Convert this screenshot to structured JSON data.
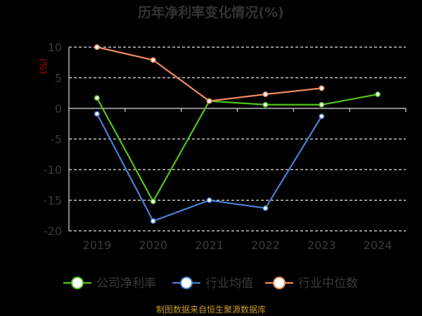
{
  "chart_data": {
    "type": "line",
    "title": "历年净利率变化情况(%)",
    "unit_label": "(%)",
    "categories": [
      "2019",
      "2020",
      "2021",
      "2022",
      "2023",
      "2024"
    ],
    "ylim": [
      -20,
      10
    ],
    "yticks": [
      "10",
      "5",
      "0",
      "-5",
      "-10",
      "-15",
      "-20"
    ],
    "grid": true,
    "legend_position": "bottom",
    "series": [
      {
        "name": "公司净利率",
        "color": "#52c41a",
        "values": [
          1.7,
          -15.2,
          1.2,
          0.6,
          0.6,
          2.3
        ]
      },
      {
        "name": "行业均值",
        "color": "#4a7fd6",
        "values": [
          -0.9,
          -18.4,
          -15.0,
          -16.3,
          -1.3,
          null
        ]
      },
      {
        "name": "行业中位数",
        "color": "#f08a5d",
        "values": [
          10.0,
          7.9,
          1.2,
          2.3,
          3.3,
          null
        ]
      }
    ],
    "source": "制图数据来自恒生聚源数据库"
  }
}
